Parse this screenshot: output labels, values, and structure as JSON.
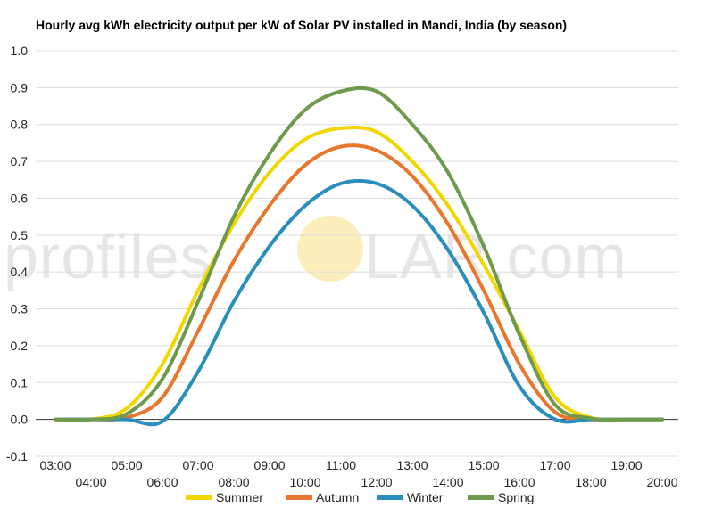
{
  "chart_data": {
    "type": "line",
    "title": "Hourly avg kWh electricity output per kW of Solar PV installed in Mandi, India (by season)",
    "xlabel": "",
    "ylabel": "",
    "categories": [
      "03:00",
      "04:00",
      "05:00",
      "06:00",
      "07:00",
      "08:00",
      "09:00",
      "10:00",
      "11:00",
      "12:00",
      "13:00",
      "14:00",
      "15:00",
      "16:00",
      "17:00",
      "18:00",
      "19:00",
      "20:00"
    ],
    "ylim": [
      -0.1,
      1.0
    ],
    "yticks": [
      "-0.1",
      "0.0",
      "0.1",
      "0.2",
      "0.3",
      "0.4",
      "0.5",
      "0.6",
      "0.7",
      "0.8",
      "0.9",
      "1.0"
    ],
    "grid": true,
    "legend": "bottom",
    "series": [
      {
        "name": "Summer",
        "color": "#f2d600",
        "values": [
          0,
          0,
          0.03,
          0.15,
          0.35,
          0.53,
          0.67,
          0.76,
          0.79,
          0.78,
          0.7,
          0.58,
          0.42,
          0.24,
          0.06,
          0.005,
          0,
          0
        ]
      },
      {
        "name": "Autumn",
        "color": "#e8762c",
        "values": [
          0,
          0,
          0.005,
          0.06,
          0.24,
          0.43,
          0.58,
          0.69,
          0.74,
          0.73,
          0.66,
          0.53,
          0.35,
          0.15,
          0.02,
          0,
          0,
          0
        ]
      },
      {
        "name": "Winter",
        "color": "#2a8ebc",
        "values": [
          0,
          0,
          0,
          -0.005,
          0.13,
          0.32,
          0.47,
          0.58,
          0.64,
          0.64,
          0.58,
          0.46,
          0.29,
          0.09,
          0,
          0,
          0,
          0
        ]
      },
      {
        "name": "Spring",
        "color": "#6e9a4e",
        "values": [
          0,
          0,
          0.015,
          0.11,
          0.32,
          0.55,
          0.72,
          0.84,
          0.89,
          0.89,
          0.8,
          0.67,
          0.47,
          0.23,
          0.04,
          0.003,
          0,
          0
        ]
      }
    ]
  },
  "watermark": {
    "left": "profiles",
    "right": "LAR.com",
    "sun_color": "#fbeebb"
  }
}
